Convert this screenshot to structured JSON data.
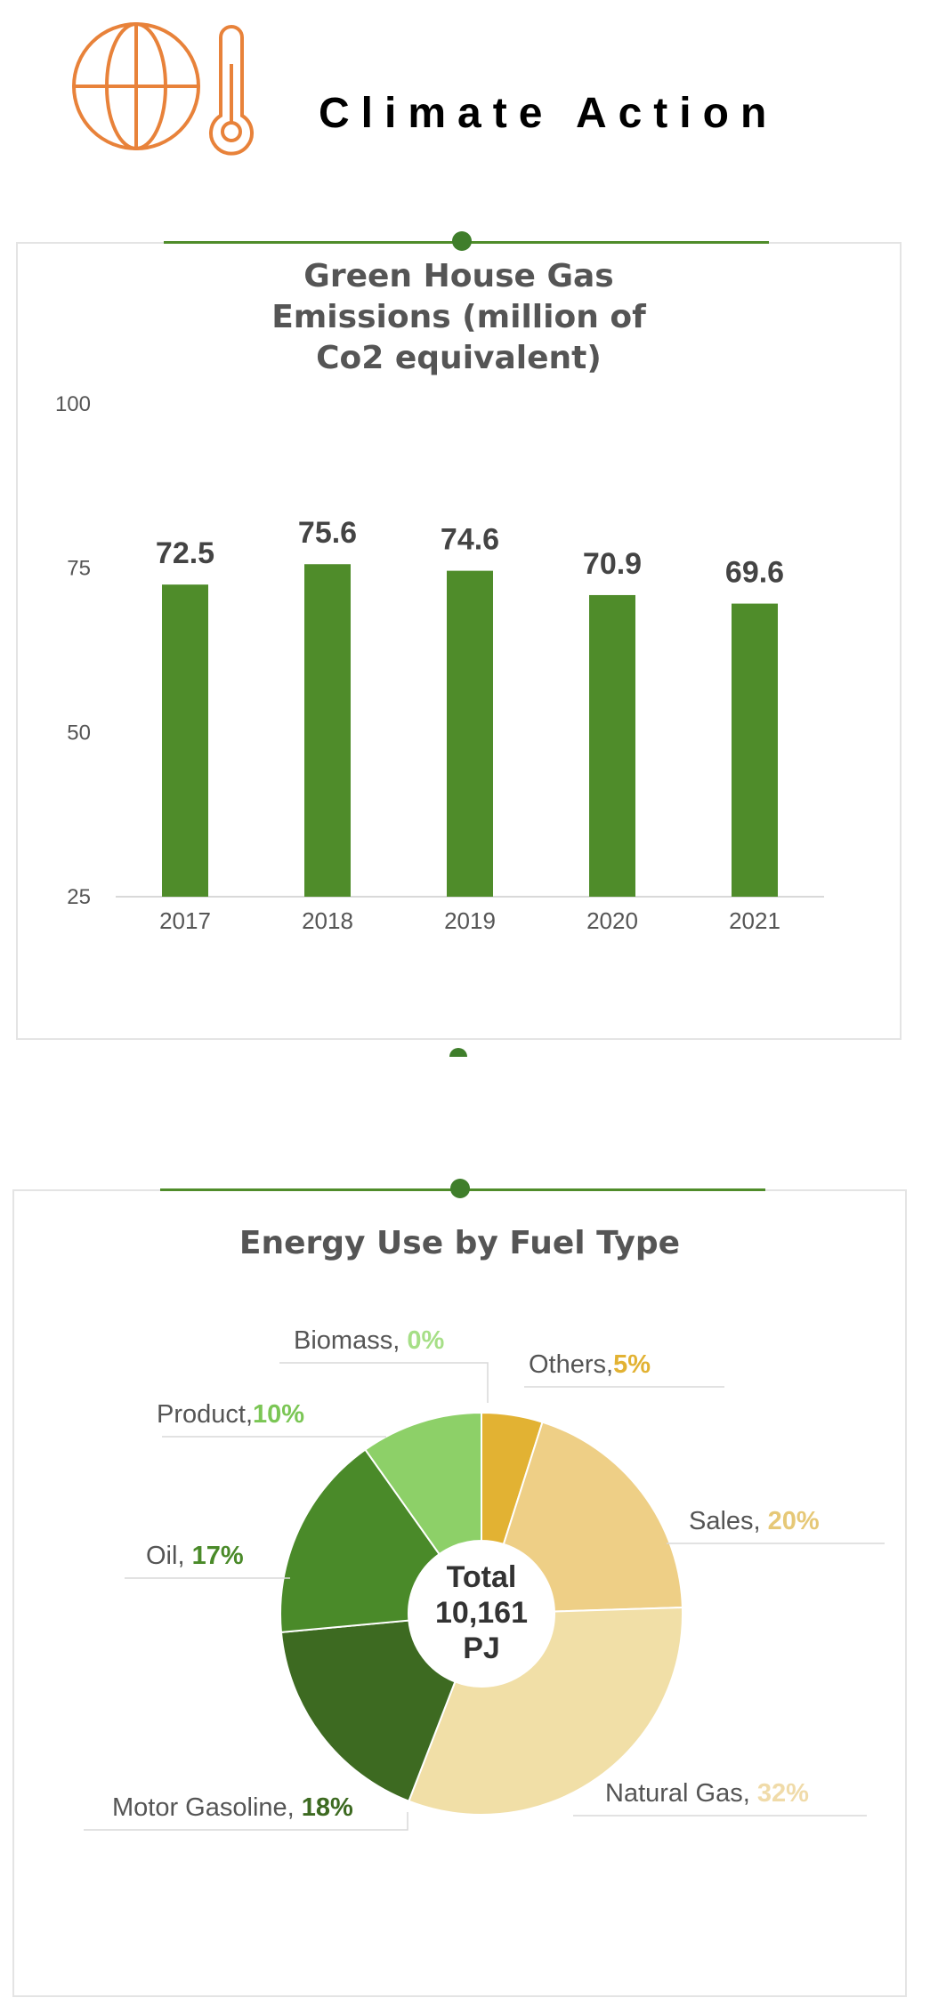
{
  "header": {
    "title": "Climate Action",
    "icon": "globe-thermometer-icon",
    "accent_color": "#e8823a"
  },
  "chart_data": [
    {
      "type": "bar",
      "title": "Green House Gas Emissions (million of   Co2 equivalent)",
      "categories": [
        "2017",
        "2018",
        "2019",
        "2020",
        "2021"
      ],
      "values": [
        72.5,
        75.6,
        74.6,
        70.9,
        69.6
      ],
      "value_labels": [
        "72.5",
        "75.6",
        "74.6",
        "70.9",
        "69.6"
      ],
      "yticks": [
        "100",
        "75",
        "50",
        "25"
      ],
      "ylim": [
        25,
        100
      ],
      "xlabel": "",
      "ylabel": "",
      "bar_color": "#4f8c2a",
      "grid": false,
      "legend": "none"
    },
    {
      "type": "pie",
      "style": "donut",
      "title": "Energy Use by Fuel Type",
      "center_label": [
        "Total",
        "10,161",
        "PJ"
      ],
      "slices": [
        {
          "name": "Others",
          "percent_label": "5%",
          "value": 5,
          "color": "#e2b233",
          "label_color": "#e2b233",
          "sep": ","
        },
        {
          "name": "Sales",
          "percent_label": "20%",
          "value": 20,
          "color": "#eecf86",
          "label_color": "#e6c877",
          "sep": ", "
        },
        {
          "name": "Natural Gas",
          "percent_label": "32%",
          "value": 32,
          "color": "#f1dfa7",
          "label_color": "#f0dba9",
          "sep": ", "
        },
        {
          "name": "Motor Gasoline",
          "percent_label": "18%",
          "value": 18,
          "color": "#3d6a21",
          "label_color": "#3d6a21",
          "sep": ", "
        },
        {
          "name": "Oil",
          "percent_label": "17%",
          "value": 17,
          "color": "#4a8a29",
          "label_color": "#4a8a29",
          "sep": ", "
        },
        {
          "name": "Product",
          "percent_label": "10%",
          "value": 10,
          "color": "#8dd068",
          "label_color": "#7bc655",
          "sep": ","
        },
        {
          "name": "Biomass",
          "percent_label": "0%",
          "value": 0,
          "color": "#b5e59b",
          "label_color": "#a6df87",
          "sep": ", "
        }
      ],
      "legend": "outside-labels"
    }
  ]
}
